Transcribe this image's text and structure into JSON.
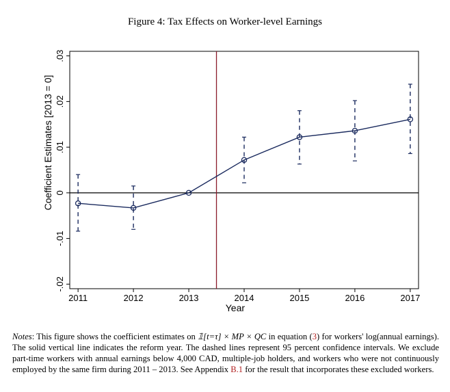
{
  "figure_title": "Figure 4: Tax Effects on Worker-level Earnings",
  "chart_data": {
    "type": "line",
    "title": "Figure 4: Tax Effects on Worker-level Earnings",
    "xlabel": "Year",
    "ylabel": "Coefficient Estimates [2013 = 0]",
    "x": [
      2011,
      2012,
      2013,
      2014,
      2015,
      2016,
      2017
    ],
    "x_tick_labels": [
      "2011",
      "2012",
      "2013",
      "2014",
      "2015",
      "2016",
      "2017"
    ],
    "y_ticks": [
      -0.02,
      -0.01,
      0,
      0.01,
      0.02,
      0.03
    ],
    "y_tick_labels": [
      "-.02",
      "-.01",
      "0",
      ".01",
      ".02",
      ".03"
    ],
    "ylim": [
      -0.021,
      0.031
    ],
    "xlim": [
      2010.85,
      2017.15
    ],
    "reference_line_x": 2013.5,
    "zero_line": true,
    "series": [
      {
        "name": "Coefficient estimate",
        "values": [
          -0.0023,
          -0.0033,
          0.0,
          0.0072,
          0.0122,
          0.0136,
          0.0161
        ],
        "ci_lower": [
          -0.0084,
          -0.008,
          null,
          0.0022,
          0.0063,
          0.007,
          0.0086
        ],
        "ci_upper": [
          0.004,
          0.0015,
          null,
          0.0122,
          0.018,
          0.0202,
          0.0238
        ]
      }
    ],
    "colors": {
      "line": "#1a2a5e",
      "ci": "#1a2a5e",
      "reform_line": "#8b1a2b",
      "axis": "#000000"
    }
  },
  "notes": {
    "label": "Notes",
    "part1": ": This figure shows the coefficient estimates on ",
    "math": "𝟙[t=τ] × MP × QC",
    "part2": " in equation (",
    "eq_ref": "3",
    "part3": ") for workers' log(annual earnings). The solid vertical line indicates the reform year. The dashed lines represent 95 percent confidence intervals. We exclude part-time workers with annual earnings below 4,000 CAD, multiple-job holders, and workers who were not continuously employed by the same firm during 2011 – 2013. See Appendix ",
    "appendix_ref": "B.1",
    "part4": " for the result that incorporates these excluded workers."
  }
}
